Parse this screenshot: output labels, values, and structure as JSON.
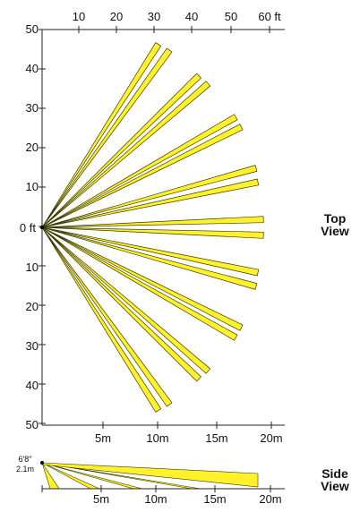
{
  "colors": {
    "beam_fill": "#FFF22A",
    "beam_stroke": "#3A3A00",
    "axis": "#222222",
    "text": "#111111"
  },
  "top_view": {
    "label_line1": "Top",
    "label_line2": "View",
    "top_axis_ticks": [
      "10",
      "20",
      "30",
      "40",
      "50",
      "60 ft"
    ],
    "left_axis_ticks": [
      "50",
      "40",
      "30",
      "20",
      "10",
      "0 ft",
      "10",
      "20",
      "30",
      "40",
      "50"
    ],
    "bottom_axis_ticks": [
      "5m",
      "10m",
      "15m",
      "20m"
    ],
    "beams": [
      {
        "x": 31.5,
        "y": 46.5
      },
      {
        "x": 34.5,
        "y": 45.0
      },
      {
        "x": 42.5,
        "y": 38.5
      },
      {
        "x": 45.0,
        "y": 36.5
      },
      {
        "x": 52.5,
        "y": 28.0
      },
      {
        "x": 54.0,
        "y": 25.5
      },
      {
        "x": 58.0,
        "y": 15.0
      },
      {
        "x": 58.5,
        "y": 11.5
      },
      {
        "x": 60.0,
        "y": 2.0
      },
      {
        "x": 60.0,
        "y": -2.0
      },
      {
        "x": 58.5,
        "y": -11.5
      },
      {
        "x": 58.0,
        "y": -15.0
      },
      {
        "x": 54.0,
        "y": -25.5
      },
      {
        "x": 52.5,
        "y": -28.0
      },
      {
        "x": 45.0,
        "y": -36.5
      },
      {
        "x": 42.5,
        "y": -38.5
      },
      {
        "x": 34.5,
        "y": -45.0
      },
      {
        "x": 31.5,
        "y": -46.5
      }
    ]
  },
  "side_view": {
    "label_line1": "Side",
    "label_line2": "View",
    "height_label_ft": "6'8\"",
    "height_label_m": "2.1m",
    "bottom_axis_ticks": [
      "5m",
      "10m",
      "15m",
      "20m"
    ]
  }
}
